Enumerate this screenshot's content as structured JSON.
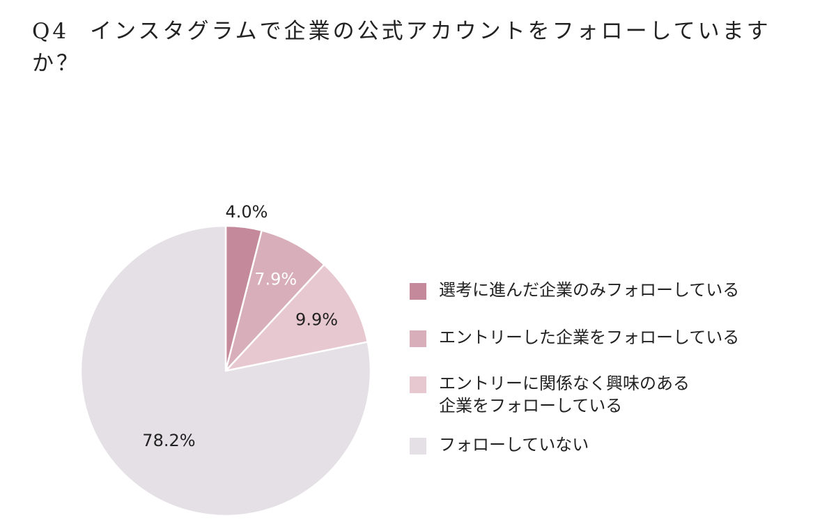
{
  "title": {
    "question_number": "Q4",
    "text": "インスタグラムで企業の公式アカウントをフォローしていますか？"
  },
  "chart_data": {
    "type": "pie",
    "title": "Q4　インスタグラムで企業の公式アカウントをフォローしていますか？",
    "start_angle_deg": 0,
    "direction": "clockwise",
    "legend_position": "right",
    "slices": [
      {
        "label": "選考に進んだ企業のみフォローしている",
        "value": 4.0,
        "value_label": "4.0%",
        "color": "#c4899a",
        "label_color": "#222222",
        "label_placement": "outside"
      },
      {
        "label": "エントリーした企業をフォローしている",
        "value": 7.9,
        "value_label": "7.9%",
        "color": "#d7aeb9",
        "label_color": "#ffffff",
        "label_placement": "inside"
      },
      {
        "label": "エントリーに関係なく興味のある\n企業をフォローしている",
        "value": 9.9,
        "value_label": "9.9%",
        "color": "#e8c8d0",
        "label_color": "#222222",
        "label_placement": "inside"
      },
      {
        "label": "フォローしていない",
        "value": 78.2,
        "value_label": "78.2%",
        "color": "#e4e0e5",
        "label_color": "#222222",
        "label_placement": "inside"
      }
    ]
  }
}
